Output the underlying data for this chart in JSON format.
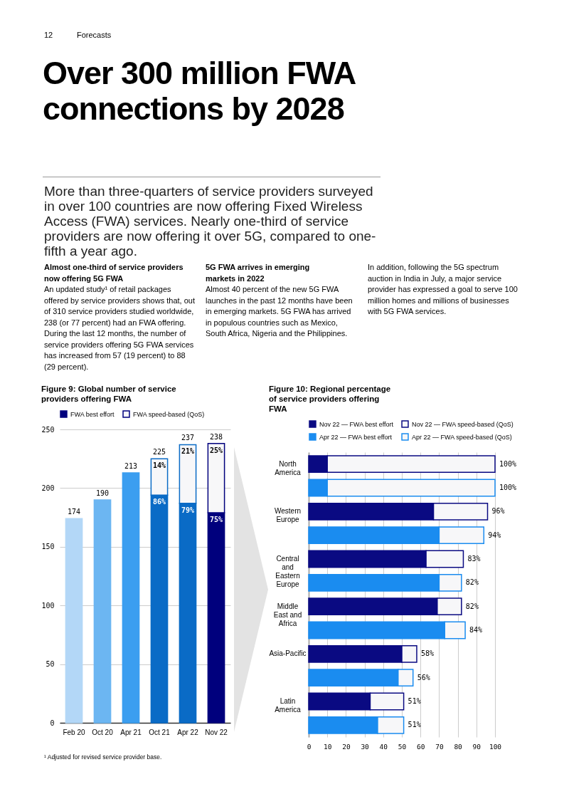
{
  "chart_data": [
    {
      "type": "other",
      "title": "Over 300 million FWA connections by 2028",
      "subtitle": "More than three-quarters of service providers surveyed in over 100 countries are now offering Fixed Wireless Access (FWA) services. Nearly one-third of service providers are now offering it over 5G, compared to one-fifth a year ago.",
      "annotations": [
        "12",
        "Forecasts",
        "Almost one-third of service providers now offering 5G FWA",
        "An updated study¹ of retail packages offered by service providers shows that, out of 310 service providers studied worldwide, 238 (or 77 percent) had an FWA offering. During the last 12 months, the number of service providers offering 5G FWA services has increased from 57 (19 percent) to 88 (29 percent).",
        "5G FWA arrives in emerging markets in 2022",
        "Almost 40 percent of the new 5G FWA launches in the past 12 months have been in emerging markets. 5G FWA has arrived in populous countries such as Mexico, South Africa, Nigeria and the Philippines.",
        "In addition, following the 5G spectrum auction in India in July, a major service provider has expressed a goal to serve 100 million homes and millions of businesses with 5G FWA services."
      ]
    },
    {
      "type": "bar",
      "title": "Figure 9: Global number of service providers offering FWA",
      "categories": [
        "Feb 20",
        "Oct 20",
        "Apr 21",
        "Oct 21",
        "Apr 22",
        "Nov 22"
      ],
      "stacked": true,
      "series": [
        {
          "name": "FWA best effort",
          "color": "#00007d",
          "colors": [
            "#b3d7f7",
            "#6cb6f2",
            "#3b9ef0",
            "#0a6bc6",
            "#0a6bc6",
            "#00007d"
          ],
          "values": [
            174,
            190,
            213,
            194,
            187,
            179
          ]
        },
        {
          "name": "FWA speed-based (QoS)",
          "color": "#f7f7f9",
          "values": [
            null,
            null,
            null,
            31,
            50,
            59
          ]
        }
      ],
      "totals": [
        "174",
        "190",
        "213",
        "225",
        "237",
        "238"
      ],
      "ylim": [
        0,
        250
      ],
      "yticks": [
        0,
        50,
        100,
        150,
        200,
        250
      ],
      "grid": "y",
      "legend": "top left",
      "annotations": [
        "¹ Adjusted for revised service provider base.",
        {
          "text": "86%",
          "x": "Oct 21",
          "y": 194
        },
        {
          "text": "79%",
          "x": "Apr 22",
          "y": 187
        },
        {
          "text": "75%",
          "x": "Nov 22",
          "y": 179
        },
        {
          "text": "14%",
          "x": "Oct 21",
          "y": 225
        },
        {
          "text": "21%",
          "x": "Apr 22",
          "y": 237
        },
        {
          "text": "25%",
          "x": "Nov 22",
          "y": 238
        }
      ]
    },
    {
      "type": "bar",
      "title": "Figure 10: Regional percentage of service providers offering FWA",
      "orientation": "horizontal",
      "stacked": true,
      "categories": [
        "North America",
        null,
        "Western Europe",
        null,
        "Central and Eastern Europe",
        null,
        "Middle East and Africa",
        null,
        "Asia-Pacific",
        null,
        "Latin America",
        null
      ],
      "series": [
        {
          "name": "Nov 22 — FWA best effort",
          "color": "#0a0a82",
          "values": [
            10,
            null,
            67,
            null,
            63,
            null,
            69,
            null,
            50,
            null,
            33,
            null
          ]
        },
        {
          "name": "Apr 22 — FWA best effort",
          "color": "#1a8cf0",
          "values": [
            null,
            10,
            null,
            70,
            null,
            70,
            null,
            73,
            null,
            48,
            null,
            37
          ]
        },
        {
          "name": "Nov 22 — FWA speed-based (QoS)",
          "color": "#f7f7f9",
          "values": [
            90,
            null,
            29,
            null,
            20,
            null,
            13,
            null,
            8,
            null,
            18,
            null
          ]
        },
        {
          "name": "Apr 22 — FWA speed-based (QoS)",
          "color": "#f7f7f9",
          "values": [
            null,
            90,
            null,
            24,
            null,
            12,
            null,
            11,
            null,
            8,
            null,
            14
          ]
        }
      ],
      "totals": [
        "100%",
        "100%",
        "96%",
        "94%",
        "83%",
        "82%",
        "82%",
        "84%",
        "58%",
        "56%",
        "51%",
        "51%"
      ],
      "xlim": [
        0,
        100
      ],
      "xticks": [
        0,
        10,
        20,
        30,
        40,
        50,
        60,
        70,
        80,
        90,
        100
      ],
      "grid": "x",
      "legend": "top left"
    }
  ]
}
